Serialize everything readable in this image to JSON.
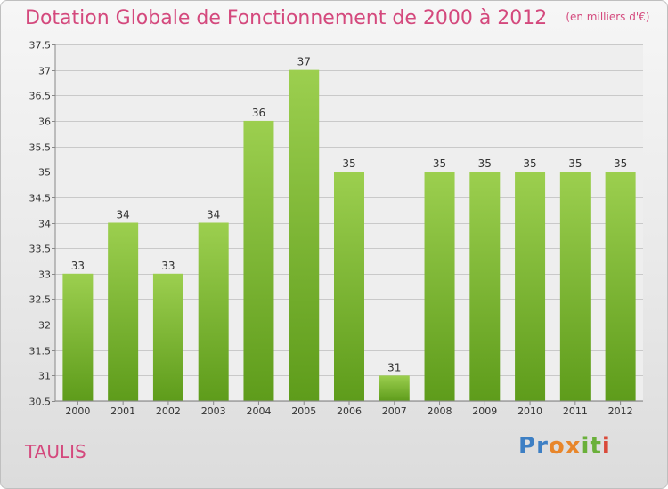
{
  "header": {
    "title": "Dotation Globale de Fonctionnement de 2000 à 2012",
    "unit": "(en milliers d'€)"
  },
  "footer": {
    "commune": "TAULIS",
    "logo_letters": [
      {
        "ch": "P",
        "color": "#3d7fc4"
      },
      {
        "ch": "r",
        "color": "#3d7fc4"
      },
      {
        "ch": "o",
        "color": "#e8862b"
      },
      {
        "ch": "x",
        "color": "#e8862b"
      },
      {
        "ch": "i",
        "color": "#6ab03a"
      },
      {
        "ch": "t",
        "color": "#6ab03a"
      },
      {
        "ch": "i",
        "color": "#d94a3a"
      }
    ]
  },
  "colors": {
    "title": "#d4497d",
    "bar_light": "#9ccf4f",
    "bar_dark": "#5e9c1b",
    "grid": "#c9c9c9"
  },
  "chart_data": {
    "type": "bar",
    "title": "Dotation Globale de Fonctionnement de 2000 à 2012",
    "categories": [
      "2000",
      "2001",
      "2002",
      "2003",
      "2004",
      "2005",
      "2006",
      "2007",
      "2008",
      "2009",
      "2010",
      "2011",
      "2012"
    ],
    "values": [
      33,
      34,
      33,
      34,
      36,
      37,
      35,
      31,
      35,
      35,
      35,
      35,
      35
    ],
    "ylim": [
      30.5,
      37.5
    ],
    "yticks": [
      30.5,
      31,
      31.5,
      32,
      32.5,
      33,
      33.5,
      34,
      34.5,
      35,
      35.5,
      36,
      36.5,
      37,
      37.5
    ],
    "grid": true,
    "legend": "none"
  }
}
